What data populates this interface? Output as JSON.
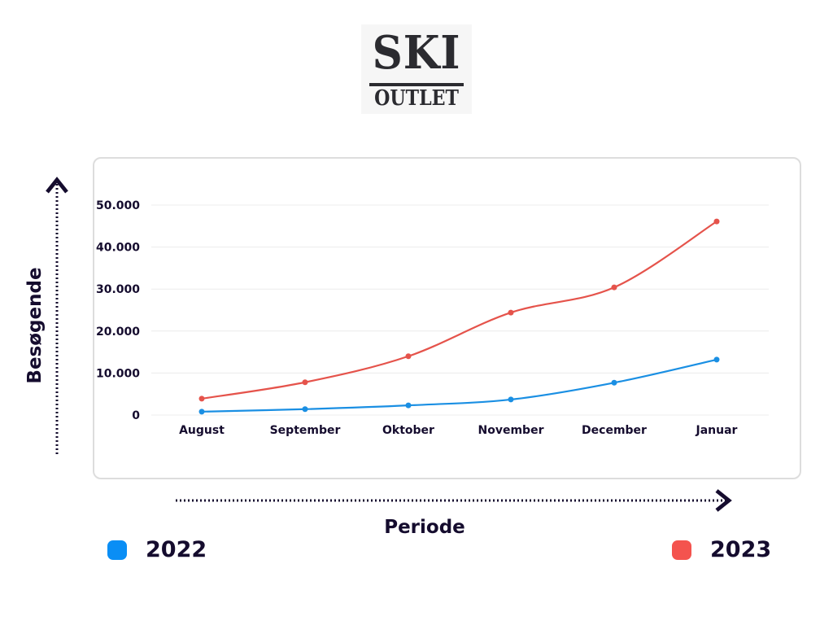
{
  "logo": {
    "line1": "SKI",
    "line2": "OUTLET"
  },
  "chart_data": {
    "type": "line",
    "title": "",
    "xlabel": "Periode",
    "ylabel": "Besøgende",
    "categories": [
      "August",
      "September",
      "Oktober",
      "November",
      "December",
      "Januar"
    ],
    "yticks": [
      "0",
      "10.000",
      "20.000",
      "30.000",
      "40.000",
      "50.000"
    ],
    "ytick_values": [
      0,
      10000,
      20000,
      30000,
      40000,
      50000
    ],
    "ylim": [
      0,
      50000
    ],
    "grid": true,
    "legend_position": "bottom",
    "series": [
      {
        "name": "2022",
        "color": "#1a8fe3",
        "values": [
          800,
          1400,
          2300,
          3700,
          7700,
          13200
        ]
      },
      {
        "name": "2023",
        "color": "#e5534b",
        "values": [
          3900,
          7800,
          14000,
          24400,
          30400,
          46100
        ]
      }
    ]
  },
  "legend_colors": {
    "2022": "#0a8ef5",
    "2023": "#f4534e"
  }
}
